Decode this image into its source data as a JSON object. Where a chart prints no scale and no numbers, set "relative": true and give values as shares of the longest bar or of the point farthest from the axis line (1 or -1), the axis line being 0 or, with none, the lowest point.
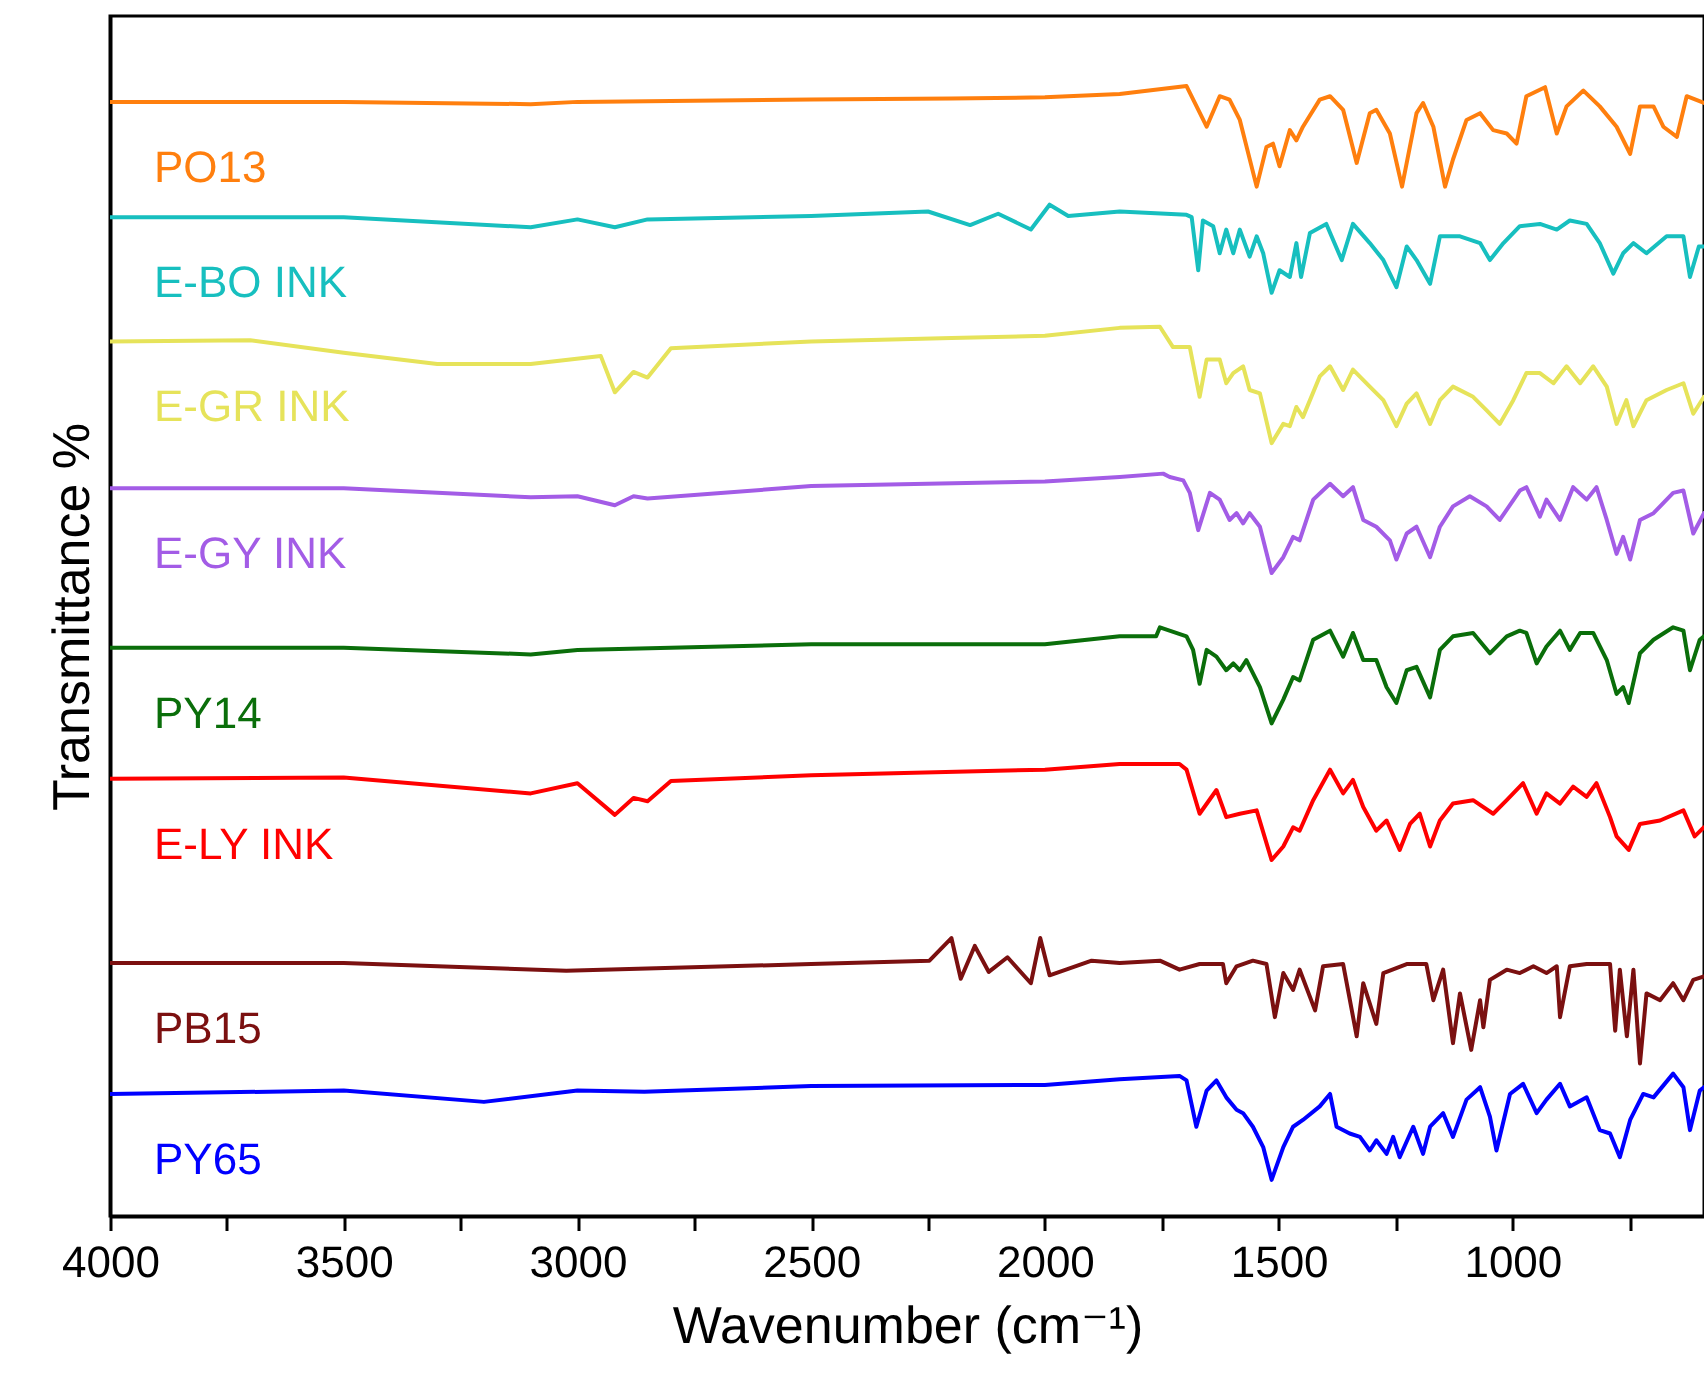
{
  "chart_data": {
    "type": "line",
    "relative": true,
    "xlabel": "Wavenumber (cm⁻¹)",
    "ylabel": "Transmittance %",
    "grid": false,
    "xlim": [
      4000,
      590
    ],
    "xticks": [
      4000,
      {
        "value": 3750,
        "label": null
      },
      3500,
      {
        "value": 3250,
        "label": null
      },
      3000,
      {
        "value": 2750,
        "label": null
      },
      2500,
      {
        "value": 2250,
        "label": null
      },
      2000,
      {
        "value": 1750,
        "label": null
      },
      1500,
      {
        "value": 1250,
        "label": null
      },
      1000,
      {
        "value": 750,
        "label": null
      }
    ],
    "series": [
      {
        "name": "PO13",
        "color": "#ff7f0e",
        "x": [
          4000,
          3500,
          3100,
          3000,
          2500,
          2200,
          2000,
          1840,
          1697,
          1654,
          1626,
          1605,
          1583,
          1547,
          1526,
          1512,
          1498,
          1476,
          1462,
          1448,
          1412,
          1390,
          1362,
          1333,
          1305,
          1291,
          1262,
          1236,
          1205,
          1191,
          1169,
          1144,
          1127,
          1098,
          1069,
          1041,
          1012,
          991,
          970,
          930,
          905,
          884,
          848,
          813,
          777,
          748,
          727,
          698,
          677,
          648,
          627,
          590
        ],
        "values": [
          0.986,
          0.986,
          0.984,
          0.986,
          0.988,
          0.989,
          0.99,
          0.993,
          1.0,
          0.964,
          0.991,
          0.988,
          0.97,
          0.911,
          0.946,
          0.949,
          0.929,
          0.961,
          0.952,
          0.964,
          0.988,
          0.991,
          0.979,
          0.932,
          0.976,
          0.979,
          0.958,
          0.911,
          0.976,
          0.985,
          0.964,
          0.911,
          0.935,
          0.97,
          0.976,
          0.961,
          0.958,
          0.949,
          0.991,
          0.999,
          0.958,
          0.982,
          0.996,
          0.982,
          0.964,
          0.94,
          0.982,
          0.982,
          0.964,
          0.955,
          0.991,
          0.985
        ]
      },
      {
        "name": "E-BO INK",
        "color": "#17bfbf",
        "x": [
          4000,
          3500,
          3100,
          3000,
          2920,
          2850,
          2500,
          2250,
          2160,
          2100,
          2030,
          1990,
          1950,
          1840,
          1697,
          1686,
          1672,
          1662,
          1640,
          1626,
          1612,
          1597,
          1583,
          1562,
          1547,
          1533,
          1515,
          1498,
          1476,
          1462,
          1452,
          1433,
          1398,
          1365,
          1341,
          1305,
          1276,
          1248,
          1226,
          1205,
          1176,
          1155,
          1112,
          1069,
          1048,
          1019,
          984,
          941,
          905,
          877,
          841,
          813,
          784,
          763,
          741,
          713,
          670,
          634,
          620,
          601,
          590
        ],
        "values": [
          0.884,
          0.884,
          0.875,
          0.882,
          0.875,
          0.882,
          0.885,
          0.889,
          0.877,
          0.887,
          0.873,
          0.895,
          0.885,
          0.889,
          0.886,
          0.884,
          0.837,
          0.881,
          0.876,
          0.852,
          0.873,
          0.852,
          0.873,
          0.849,
          0.867,
          0.852,
          0.817,
          0.837,
          0.831,
          0.861,
          0.831,
          0.87,
          0.878,
          0.846,
          0.878,
          0.861,
          0.846,
          0.822,
          0.858,
          0.846,
          0.825,
          0.867,
          0.867,
          0.861,
          0.846,
          0.861,
          0.876,
          0.878,
          0.873,
          0.881,
          0.878,
          0.861,
          0.834,
          0.852,
          0.861,
          0.852,
          0.867,
          0.867,
          0.831,
          0.858,
          0.858
        ]
      },
      {
        "name": "E-GR INK",
        "color": "#e6e35a",
        "x": [
          4000,
          3700,
          3500,
          3300,
          3100,
          2950,
          2920,
          2880,
          2850,
          2800,
          2500,
          2200,
          2000,
          1840,
          1754,
          1726,
          1690,
          1669,
          1654,
          1626,
          1612,
          1597,
          1576,
          1562,
          1540,
          1515,
          1490,
          1476,
          1462,
          1448,
          1412,
          1390,
          1362,
          1341,
          1305,
          1276,
          1248,
          1226,
          1205,
          1176,
          1155,
          1127,
          1084,
          1055,
          1027,
          998,
          970,
          941,
          912,
          884,
          855,
          827,
          798,
          777,
          756,
          741,
          713,
          670,
          634,
          613,
          590
        ],
        "values": [
          0.774,
          0.775,
          0.764,
          0.754,
          0.754,
          0.761,
          0.729,
          0.747,
          0.742,
          0.768,
          0.774,
          0.777,
          0.779,
          0.786,
          0.787,
          0.769,
          0.769,
          0.725,
          0.758,
          0.758,
          0.737,
          0.746,
          0.752,
          0.731,
          0.728,
          0.684,
          0.701,
          0.699,
          0.716,
          0.707,
          0.743,
          0.752,
          0.731,
          0.749,
          0.734,
          0.722,
          0.699,
          0.719,
          0.728,
          0.701,
          0.722,
          0.734,
          0.725,
          0.713,
          0.701,
          0.722,
          0.746,
          0.746,
          0.737,
          0.752,
          0.737,
          0.752,
          0.734,
          0.701,
          0.722,
          0.699,
          0.722,
          0.731,
          0.737,
          0.71,
          0.725
        ]
      },
      {
        "name": "E-GY INK",
        "color": "#a35ce6",
        "x": [
          4000,
          3500,
          3100,
          3000,
          2920,
          2880,
          2850,
          2500,
          2000,
          1840,
          1747,
          1733,
          1704,
          1690,
          1672,
          1647,
          1626,
          1605,
          1590,
          1576,
          1562,
          1540,
          1515,
          1490,
          1469,
          1455,
          1426,
          1390,
          1362,
          1341,
          1319,
          1291,
          1262,
          1248,
          1226,
          1205,
          1176,
          1155,
          1127,
          1091,
          1055,
          1027,
          984,
          970,
          941,
          927,
          898,
          870,
          841,
          820,
          798,
          777,
          763,
          748,
          727,
          698,
          656,
          634,
          613,
          590
        ],
        "values": [
          0.644,
          0.644,
          0.636,
          0.637,
          0.629,
          0.637,
          0.635,
          0.646,
          0.65,
          0.654,
          0.657,
          0.654,
          0.651,
          0.64,
          0.607,
          0.64,
          0.634,
          0.616,
          0.622,
          0.613,
          0.622,
          0.61,
          0.569,
          0.583,
          0.601,
          0.598,
          0.634,
          0.648,
          0.637,
          0.645,
          0.616,
          0.61,
          0.598,
          0.581,
          0.604,
          0.61,
          0.583,
          0.61,
          0.628,
          0.637,
          0.628,
          0.616,
          0.642,
          0.645,
          0.619,
          0.634,
          0.616,
          0.645,
          0.634,
          0.645,
          0.616,
          0.586,
          0.601,
          0.581,
          0.616,
          0.622,
          0.64,
          0.642,
          0.604,
          0.622
        ]
      },
      {
        "name": "PY14",
        "color": "#0a6e0a",
        "x": [
          4000,
          3500,
          3100,
          3000,
          2500,
          2000,
          1840,
          1762,
          1754,
          1697,
          1683,
          1669,
          1654,
          1633,
          1612,
          1597,
          1583,
          1569,
          1540,
          1515,
          1490,
          1469,
          1455,
          1426,
          1390,
          1362,
          1341,
          1319,
          1291,
          1269,
          1248,
          1226,
          1205,
          1176,
          1155,
          1127,
          1084,
          1048,
          1012,
          984,
          970,
          948,
          927,
          898,
          877,
          855,
          827,
          798,
          777,
          763,
          751,
          727,
          698,
          656,
          634,
          620,
          599,
          590
        ],
        "values": [
          0.503,
          0.503,
          0.497,
          0.501,
          0.506,
          0.506,
          0.513,
          0.513,
          0.521,
          0.513,
          0.501,
          0.471,
          0.501,
          0.495,
          0.483,
          0.489,
          0.483,
          0.492,
          0.468,
          0.436,
          0.457,
          0.477,
          0.474,
          0.51,
          0.518,
          0.495,
          0.516,
          0.492,
          0.492,
          0.468,
          0.454,
          0.483,
          0.486,
          0.459,
          0.501,
          0.513,
          0.516,
          0.498,
          0.513,
          0.518,
          0.516,
          0.489,
          0.504,
          0.518,
          0.501,
          0.516,
          0.516,
          0.492,
          0.462,
          0.468,
          0.454,
          0.498,
          0.51,
          0.521,
          0.518,
          0.483,
          0.51,
          0.513
        ]
      },
      {
        "name": "E-LY INK",
        "color": "#ff0000",
        "x": [
          4000,
          3500,
          3100,
          3000,
          2920,
          2880,
          2850,
          2800,
          2500,
          2000,
          1840,
          1712,
          1697,
          1669,
          1633,
          1612,
          1583,
          1547,
          1515,
          1490,
          1469,
          1455,
          1426,
          1390,
          1362,
          1341,
          1319,
          1291,
          1269,
          1241,
          1219,
          1198,
          1176,
          1155,
          1127,
          1084,
          1041,
          1012,
          977,
          948,
          927,
          898,
          870,
          841,
          820,
          791,
          777,
          751,
          727,
          684,
          634,
          610,
          590
        ],
        "values": [
          0.387,
          0.388,
          0.374,
          0.383,
          0.355,
          0.37,
          0.367,
          0.385,
          0.39,
          0.395,
          0.4,
          0.4,
          0.395,
          0.356,
          0.377,
          0.353,
          0.356,
          0.359,
          0.315,
          0.327,
          0.344,
          0.341,
          0.368,
          0.395,
          0.374,
          0.386,
          0.362,
          0.341,
          0.35,
          0.324,
          0.347,
          0.356,
          0.327,
          0.35,
          0.365,
          0.368,
          0.356,
          0.368,
          0.383,
          0.356,
          0.374,
          0.365,
          0.38,
          0.371,
          0.383,
          0.353,
          0.336,
          0.324,
          0.347,
          0.35,
          0.359,
          0.336,
          0.344
        ]
      },
      {
        "name": "PB15",
        "color": "#7b1010",
        "x": [
          4000,
          3500,
          3024,
          2500,
          2247,
          2200,
          2180,
          2150,
          2120,
          2080,
          2030,
          2010,
          1990,
          1900,
          1840,
          1754,
          1712,
          1669,
          1619,
          1612,
          1590,
          1555,
          1526,
          1508,
          1490,
          1469,
          1455,
          1422,
          1405,
          1362,
          1333,
          1319,
          1291,
          1276,
          1226,
          1184,
          1169,
          1148,
          1127,
          1112,
          1088,
          1069,
          1062,
          1048,
          1012,
          984,
          955,
          927,
          905,
          898,
          877,
          841,
          791,
          780,
          770,
          755,
          741,
          727,
          713,
          684,
          656,
          634,
          613,
          590
        ],
        "values": [
          0.224,
          0.224,
          0.217,
          0.223,
          0.226,
          0.246,
          0.21,
          0.239,
          0.216,
          0.229,
          0.206,
          0.246,
          0.213,
          0.226,
          0.224,
          0.226,
          0.218,
          0.223,
          0.223,
          0.206,
          0.221,
          0.226,
          0.223,
          0.176,
          0.215,
          0.2,
          0.218,
          0.182,
          0.221,
          0.223,
          0.159,
          0.206,
          0.17,
          0.215,
          0.223,
          0.223,
          0.191,
          0.218,
          0.153,
          0.197,
          0.147,
          0.191,
          0.167,
          0.209,
          0.218,
          0.215,
          0.221,
          0.215,
          0.221,
          0.176,
          0.221,
          0.223,
          0.223,
          0.164,
          0.218,
          0.159,
          0.218,
          0.135,
          0.197,
          0.191,
          0.206,
          0.191,
          0.209,
          0.212
        ]
      },
      {
        "name": "PY65",
        "color": "#0000ff",
        "x": [
          4000,
          3500,
          3200,
          3000,
          2857,
          2500,
          2000,
          1840,
          1712,
          1697,
          1676,
          1654,
          1633,
          1612,
          1590,
          1576,
          1555,
          1533,
          1515,
          1490,
          1469,
          1448,
          1412,
          1390,
          1376,
          1348,
          1326,
          1305,
          1291,
          1269,
          1255,
          1241,
          1212,
          1191,
          1176,
          1148,
          1127,
          1098,
          1069,
          1048,
          1034,
          1005,
          977,
          948,
          927,
          898,
          877,
          841,
          813,
          791,
          770,
          748,
          720,
          698,
          656,
          634,
          620,
          599,
          590
        ],
        "values": [
          0.108,
          0.111,
          0.101,
          0.111,
          0.11,
          0.115,
          0.116,
          0.121,
          0.124,
          0.12,
          0.079,
          0.111,
          0.12,
          0.105,
          0.094,
          0.091,
          0.079,
          0.061,
          0.032,
          0.061,
          0.079,
          0.085,
          0.097,
          0.108,
          0.079,
          0.073,
          0.07,
          0.058,
          0.067,
          0.055,
          0.07,
          0.052,
          0.079,
          0.055,
          0.079,
          0.091,
          0.07,
          0.103,
          0.114,
          0.088,
          0.058,
          0.108,
          0.117,
          0.091,
          0.103,
          0.117,
          0.097,
          0.105,
          0.076,
          0.073,
          0.052,
          0.085,
          0.108,
          0.105,
          0.126,
          0.114,
          0.076,
          0.111,
          0.114
        ]
      }
    ]
  }
}
